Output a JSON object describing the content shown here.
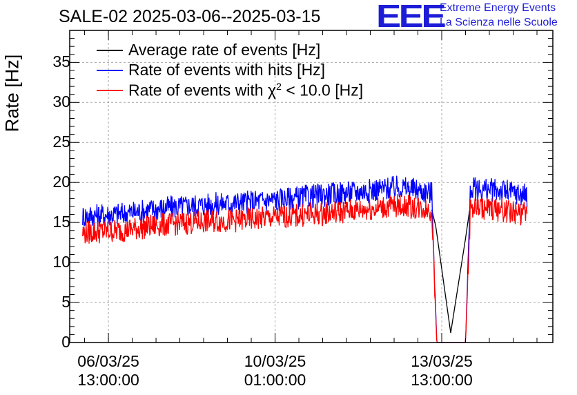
{
  "chart_data": {
    "type": "line",
    "title": "SALE-02 2025-03-06--2025-03-15",
    "ylabel": "Rate [Hz]",
    "xlabel": "",
    "ylim": [
      0,
      39
    ],
    "yticks": [
      0,
      5,
      10,
      15,
      20,
      25,
      30,
      35
    ],
    "x_unit": "hours since 06/03/25 00:00",
    "xlim": [
      -6.5,
      237
    ],
    "xticks": [
      {
        "x": 13,
        "line1": "06/03/25",
        "line2": "13:00:00"
      },
      {
        "x": 97,
        "line1": "10/03/25",
        "line2": "01:00:00"
      },
      {
        "x": 181,
        "line1": "13/03/25",
        "line2": "13:00:00"
      }
    ],
    "grid": true,
    "legend_position": "top-left",
    "series": [
      {
        "name": "Rate of events with hits [Hz]",
        "color": "#0000ff",
        "x": [
          0,
          20,
          40,
          60,
          80,
          100,
          120,
          140,
          160,
          176,
          178.5,
          193,
          195.5,
          210,
          224
        ],
        "values": [
          15.8,
          16.1,
          16.8,
          17.2,
          17.5,
          17.9,
          18.4,
          18.9,
          19.4,
          18.7,
          0,
          0,
          19.2,
          19.0,
          18.4
        ],
        "noise": 1.5
      },
      {
        "name": "Rate of events with χ² < 10.0 [Hz]",
        "color": "#ff0000",
        "x": [
          0,
          20,
          40,
          60,
          80,
          100,
          120,
          140,
          160,
          176,
          178.5,
          193,
          195.5,
          210,
          224
        ],
        "values": [
          13.7,
          14.0,
          14.7,
          15.1,
          15.3,
          15.7,
          16.1,
          16.6,
          17.1,
          16.6,
          0,
          0,
          16.9,
          16.6,
          16.0
        ],
        "noise": 1.5
      },
      {
        "name": "Average rate of events [Hz]",
        "color": "#000000",
        "x": [
          176,
          178,
          185.5,
          193,
          195
        ],
        "values": [
          16.6,
          14.5,
          1.2,
          13.0,
          16.5
        ],
        "noise": 0
      }
    ],
    "legend_order": [
      {
        "label": "Average rate of events [Hz]",
        "color": "#000000"
      },
      {
        "label": "Rate of events with hits [Hz]",
        "color": "#0000ff"
      },
      {
        "label_prefix": "Rate of events with ",
        "label_symbol": "χ",
        "label_sup": "2",
        "label_suffix": " < 10.0 [Hz]",
        "color": "#ff0000"
      }
    ]
  },
  "logo": {
    "text": "EEE",
    "line1": "Extreme Energy Events",
    "line2": "La Scienza nelle Scuole",
    "color": "#1d1dd8"
  }
}
